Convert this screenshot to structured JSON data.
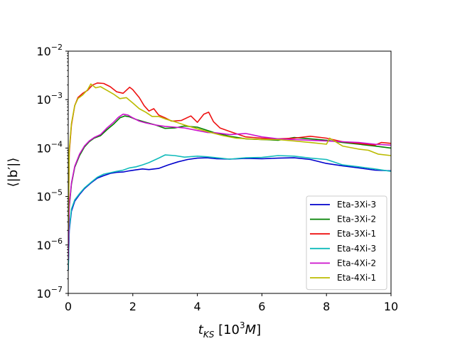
{
  "chart_data": {
    "type": "line",
    "title": "",
    "xlabel": "t_KS [10^3 M]",
    "ylabel": "⟨|b′|⟩",
    "xlim": [
      0,
      10
    ],
    "ylim": [
      1e-07,
      0.01
    ],
    "yscale": "log",
    "x_ticks": [
      0,
      2,
      4,
      6,
      8,
      10
    ],
    "x_tick_labels": [
      "0",
      "2",
      "4",
      "6",
      "8",
      "10"
    ],
    "y_ticks": [
      1e-07,
      1e-06,
      1e-05,
      0.0001,
      0.001,
      0.01
    ],
    "y_tick_labels": [
      {
        "base": "10",
        "exp": "−7"
      },
      {
        "base": "10",
        "exp": "−6"
      },
      {
        "base": "10",
        "exp": "−5"
      },
      {
        "base": "10",
        "exp": "−4"
      },
      {
        "base": "10",
        "exp": "−3"
      },
      {
        "base": "10",
        "exp": "−2"
      }
    ],
    "grid": false,
    "legend_position": "lower-right",
    "series": [
      {
        "name": "Eta-3Xi-3",
        "color": "#0000cc",
        "x": [
          0,
          0.03,
          0.1,
          0.2,
          0.35,
          0.5,
          0.7,
          0.9,
          1.1,
          1.3,
          1.5,
          1.7,
          1.9,
          2.1,
          2.3,
          2.5,
          2.8,
          3.1,
          3.4,
          3.7,
          4.0,
          4.3,
          4.6,
          5.0,
          5.5,
          6.0,
          6.5,
          7.0,
          7.5,
          8.0,
          8.5,
          9.0,
          9.5,
          10.0
        ],
        "y": [
          3e-07,
          2e-06,
          5e-06,
          8e-06,
          1.1e-05,
          1.45e-05,
          1.9e-05,
          2.4e-05,
          2.7e-05,
          3e-05,
          3.15e-05,
          3.2e-05,
          3.4e-05,
          3.55e-05,
          3.7e-05,
          3.6e-05,
          3.8e-05,
          4.5e-05,
          5.2e-05,
          5.8e-05,
          6.2e-05,
          6.3e-05,
          6e-05,
          5.9e-05,
          6.1e-05,
          6e-05,
          6.2e-05,
          6.3e-05,
          5.8e-05,
          4.8e-05,
          4.3e-05,
          3.9e-05,
          3.5e-05,
          3.4e-05
        ]
      },
      {
        "name": "Eta-3Xi-2",
        "color": "#008000",
        "x": [
          0,
          0.03,
          0.1,
          0.2,
          0.35,
          0.5,
          0.65,
          0.8,
          1.0,
          1.2,
          1.4,
          1.6,
          1.75,
          1.9,
          2.1,
          2.4,
          2.7,
          3.0,
          3.3,
          3.6,
          4.0,
          4.5,
          5.0,
          5.5,
          6.0,
          6.5,
          7.0,
          7.5,
          8.0,
          8.5,
          9.0,
          9.5,
          10.0
        ],
        "y": [
          5e-07,
          6e-06,
          1.8e-05,
          4e-05,
          7e-05,
          0.000105,
          0.000135,
          0.00016,
          0.00018,
          0.00024,
          0.00031,
          0.00042,
          0.00046,
          0.00044,
          0.00039,
          0.00034,
          0.0003,
          0.000255,
          0.00026,
          0.000285,
          0.00027,
          0.00021,
          0.000175,
          0.000155,
          0.00015,
          0.000145,
          0.000165,
          0.000155,
          0.000145,
          0.00013,
          0.00012,
          0.00011,
          0.0001
        ]
      },
      {
        "name": "Eta-3Xi-1",
        "color": "#ee1111",
        "x": [
          0,
          0.03,
          0.1,
          0.2,
          0.3,
          0.45,
          0.6,
          0.75,
          0.9,
          1.1,
          1.3,
          1.5,
          1.7,
          1.9,
          2.0,
          2.2,
          2.35,
          2.5,
          2.65,
          2.8,
          3.0,
          3.2,
          3.5,
          3.8,
          4.0,
          4.2,
          4.35,
          4.5,
          4.7,
          5.0,
          5.5,
          6.0,
          6.5,
          7.0,
          7.5,
          8.0,
          8.5,
          9.0,
          9.5,
          9.7,
          10.0
        ],
        "y": [
          2e-06,
          8e-05,
          0.0003,
          0.00075,
          0.0011,
          0.00135,
          0.00155,
          0.002,
          0.0022,
          0.00215,
          0.00185,
          0.00145,
          0.00135,
          0.0018,
          0.0016,
          0.0011,
          0.00075,
          0.00058,
          0.00065,
          0.00048,
          0.00042,
          0.00036,
          0.00037,
          0.00046,
          0.00034,
          0.0005,
          0.00055,
          0.00035,
          0.00026,
          0.00022,
          0.00017,
          0.00016,
          0.000155,
          0.00016,
          0.000175,
          0.00016,
          0.000135,
          0.000125,
          0.000115,
          0.00013,
          0.000125
        ]
      },
      {
        "name": "Eta-4Xi-3",
        "color": "#11bbbb",
        "x": [
          0,
          0.03,
          0.1,
          0.2,
          0.35,
          0.5,
          0.7,
          0.9,
          1.1,
          1.3,
          1.5,
          1.7,
          1.9,
          2.1,
          2.3,
          2.5,
          2.8,
          3.0,
          3.3,
          3.6,
          4.0,
          4.3,
          4.6,
          5.0,
          5.5,
          6.0,
          6.5,
          7.0,
          7.5,
          8.0,
          8.5,
          9.0,
          9.5,
          10.0
        ],
        "y": [
          3e-07,
          2.2e-06,
          5.5e-06,
          8.5e-06,
          1.15e-05,
          1.5e-05,
          1.95e-05,
          2.5e-05,
          2.9e-05,
          3.1e-05,
          3.3e-05,
          3.5e-05,
          3.9e-05,
          4.1e-05,
          4.5e-05,
          5e-05,
          6.2e-05,
          7.2e-05,
          7e-05,
          6.5e-05,
          6.8e-05,
          6.6e-05,
          6.3e-05,
          5.9e-05,
          6.3e-05,
          6.4e-05,
          7e-05,
          6.8e-05,
          6.2e-05,
          5.8e-05,
          4.5e-05,
          4.1e-05,
          3.7e-05,
          3.3e-05
        ]
      },
      {
        "name": "Eta-4Xi-2",
        "color": "#cc11cc",
        "x": [
          0,
          0.03,
          0.1,
          0.2,
          0.35,
          0.5,
          0.65,
          0.8,
          1.0,
          1.2,
          1.4,
          1.55,
          1.7,
          1.85,
          2.0,
          2.2,
          2.4,
          2.7,
          3.0,
          3.3,
          3.6,
          4.0,
          4.3,
          4.6,
          5.0,
          5.5,
          6.0,
          6.5,
          7.0,
          7.5,
          8.0,
          8.5,
          9.0,
          9.5,
          10.0
        ],
        "y": [
          5e-07,
          6.5e-06,
          1.9e-05,
          4.2e-05,
          7.5e-05,
          0.00011,
          0.00014,
          0.000165,
          0.00019,
          0.00026,
          0.00034,
          0.00043,
          0.0005,
          0.00048,
          0.00042,
          0.00036,
          0.00033,
          0.0003,
          0.00028,
          0.00027,
          0.00026,
          0.00023,
          0.00021,
          0.000205,
          0.00019,
          0.0002,
          0.00017,
          0.000155,
          0.00015,
          0.000145,
          0.00014,
          0.000135,
          0.00013,
          0.00012,
          0.000115
        ]
      },
      {
        "name": "Eta-4Xi-1",
        "color": "#bbbb00",
        "x": [
          0,
          0.03,
          0.1,
          0.2,
          0.3,
          0.45,
          0.6,
          0.7,
          0.85,
          1.0,
          1.2,
          1.4,
          1.6,
          1.8,
          2.0,
          2.2,
          2.4,
          2.6,
          2.8,
          3.0,
          3.3,
          3.6,
          4.0,
          4.4,
          4.8,
          5.2,
          5.6,
          6.0,
          6.5,
          7.0,
          7.5,
          8.0,
          8.1,
          8.5,
          9.0,
          9.3,
          9.6,
          10.0
        ],
        "y": [
          2e-06,
          9e-05,
          0.00032,
          0.00075,
          0.00105,
          0.00125,
          0.0016,
          0.0021,
          0.00175,
          0.00185,
          0.00155,
          0.0013,
          0.00105,
          0.0011,
          0.00085,
          0.00065,
          0.00055,
          0.00045,
          0.00045,
          0.0004,
          0.00035,
          0.0003,
          0.00025,
          0.00021,
          0.00018,
          0.00016,
          0.000155,
          0.00015,
          0.00015,
          0.00014,
          0.00013,
          0.00012,
          0.00016,
          0.00011,
          9.5e-05,
          9e-05,
          7.5e-05,
          7e-05
        ]
      }
    ]
  }
}
